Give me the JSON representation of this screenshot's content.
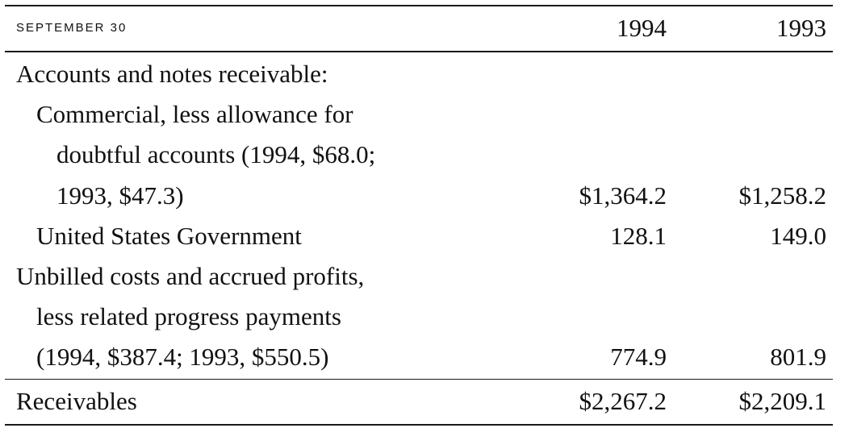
{
  "header": {
    "label": "SEPTEMBER 30",
    "year1": "1994",
    "year2": "1993"
  },
  "rows": [
    {
      "label": "Accounts and notes receivable:",
      "v1994": "",
      "v1993": ""
    },
    {
      "label": "Commercial, less allowance for",
      "v1994": "",
      "v1993": ""
    },
    {
      "label": "doubtful accounts (1994, $68.0;",
      "v1994": "",
      "v1993": ""
    },
    {
      "label": "1993, $47.3)",
      "v1994": "$1,364.2",
      "v1993": "$1,258.2"
    },
    {
      "label": "United States Government",
      "v1994": "128.1",
      "v1993": "149.0"
    },
    {
      "label": "Unbilled costs and accrued profits,",
      "v1994": "",
      "v1993": ""
    },
    {
      "label": "less related progress payments",
      "v1994": "",
      "v1993": ""
    },
    {
      "label": "(1994, $387.4; 1993, $550.5)",
      "v1994": "774.9",
      "v1993": "801.9"
    }
  ],
  "total": {
    "label": "Receivables",
    "v1994": "$2,267.2",
    "v1993": "$2,209.1"
  }
}
